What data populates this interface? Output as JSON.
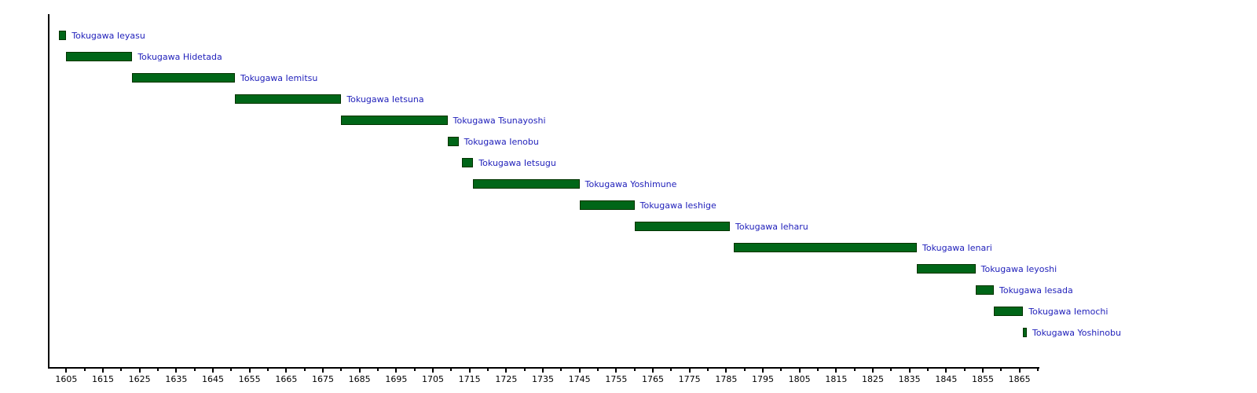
{
  "chart_data": {
    "type": "bar",
    "variant": "horizontal-timeline-gantt",
    "title": "",
    "xlabel": "",
    "ylabel": "",
    "grid": false,
    "legend": null,
    "x_axis": {
      "min": 1600,
      "max": 1870,
      "major_tick_years": [
        1605,
        1615,
        1625,
        1635,
        1645,
        1655,
        1665,
        1675,
        1685,
        1695,
        1705,
        1715,
        1725,
        1735,
        1745,
        1755,
        1765,
        1775,
        1785,
        1795,
        1805,
        1815,
        1825,
        1835,
        1845,
        1855,
        1865
      ],
      "minor_tick_years": [
        1610,
        1620,
        1630,
        1640,
        1650,
        1660,
        1670,
        1680,
        1690,
        1700,
        1710,
        1720,
        1730,
        1740,
        1750,
        1760,
        1770,
        1780,
        1790,
        1800,
        1810,
        1820,
        1830,
        1840,
        1850,
        1860,
        1870
      ]
    },
    "bars": [
      {
        "label": "Tokugawa Ieyasu",
        "start": 1603,
        "end": 1605
      },
      {
        "label": "Tokugawa Hidetada",
        "start": 1605,
        "end": 1623
      },
      {
        "label": "Tokugawa Iemitsu",
        "start": 1623,
        "end": 1651
      },
      {
        "label": "Tokugawa Ietsuna",
        "start": 1651,
        "end": 1680
      },
      {
        "label": "Tokugawa Tsunayoshi",
        "start": 1680,
        "end": 1709
      },
      {
        "label": "Tokugawa Ienobu",
        "start": 1709,
        "end": 1712
      },
      {
        "label": "Tokugawa Ietsugu",
        "start": 1713,
        "end": 1716
      },
      {
        "label": "Tokugawa Yoshimune",
        "start": 1716,
        "end": 1745
      },
      {
        "label": "Tokugawa Ieshige",
        "start": 1745,
        "end": 1760
      },
      {
        "label": "Tokugawa Ieharu",
        "start": 1760,
        "end": 1786
      },
      {
        "label": "Tokugawa Ienari",
        "start": 1787,
        "end": 1837
      },
      {
        "label": "Tokugawa Ieyoshi",
        "start": 1837,
        "end": 1853
      },
      {
        "label": "Tokugawa Iesada",
        "start": 1853,
        "end": 1858
      },
      {
        "label": "Tokugawa Iemochi",
        "start": 1858,
        "end": 1866
      },
      {
        "label": "Tokugawa Yoshinobu",
        "start": 1866,
        "end": 1867
      }
    ],
    "colors": {
      "bar_fill": "#006618",
      "bar_border": "#003300",
      "bar_label": "#2222bb",
      "axis": "#000000",
      "tick_label": "#000000",
      "background": "#ffffff"
    }
  }
}
